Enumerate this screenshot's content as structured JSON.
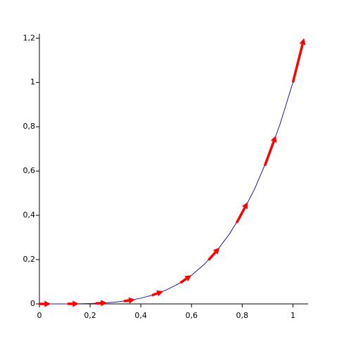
{
  "chart_data": {
    "type": "line",
    "x": [
      0,
      0.05,
      0.1,
      0.15,
      0.2,
      0.25,
      0.3,
      0.35,
      0.4,
      0.45,
      0.5,
      0.55,
      0.6,
      0.65,
      0.7,
      0.75,
      0.8,
      0.85,
      0.9,
      0.95,
      1
    ],
    "series": [
      {
        "color": "#1a1a9a",
        "values": [
          0,
          0,
          0.0001,
          0.0005,
          0.0016,
          0.0039,
          0.0081,
          0.015,
          0.0256,
          0.041,
          0.0625,
          0.0915,
          0.1296,
          0.1785,
          0.2401,
          0.3164,
          0.4096,
          0.522,
          0.6561,
          0.8145,
          1
        ]
      }
    ],
    "arrows": {
      "color": "#ff0000",
      "x": [
        0,
        0.111,
        0.222,
        0.333,
        0.444,
        0.556,
        0.667,
        0.778,
        0.889,
        1
      ],
      "y": [
        0,
        0.0002,
        0.0024,
        0.0123,
        0.039,
        0.095,
        0.198,
        0.366,
        0.624,
        1
      ],
      "x_end": [
        0.045,
        0.156,
        0.267,
        0.378,
        0.489,
        0.6,
        0.711,
        0.822,
        0.933,
        1.044
      ],
      "y_end": [
        0,
        0.0006,
        0.005,
        0.02,
        0.057,
        0.13,
        0.255,
        0.46,
        0.76,
        1.2
      ]
    },
    "xlim": [
      0,
      1.06
    ],
    "ylim": [
      0,
      1.22
    ],
    "xticks": [
      0,
      {
        "value": 0.2,
        "label": "0,2"
      },
      {
        "value": 0.4,
        "label": "0,4"
      },
      {
        "value": 0.6,
        "label": "0,6"
      },
      {
        "value": 0.8,
        "label": "0,8"
      },
      1
    ],
    "yticks": [
      0,
      {
        "value": 0.2,
        "label": "0,2"
      },
      {
        "value": 0.4,
        "label": "0,4"
      },
      {
        "value": 0.6,
        "label": "0,6"
      },
      {
        "value": 0.8,
        "label": "0,8"
      },
      1,
      {
        "value": 1.2,
        "label": "1,2"
      }
    ]
  }
}
